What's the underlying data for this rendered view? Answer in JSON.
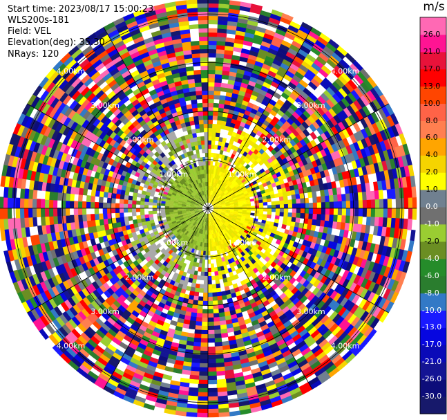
{
  "info": {
    "start_time": "Start time: 2023/08/17 15:00:23",
    "instrument": "WLS200s-181",
    "field": "Field: VEL",
    "elevation": "Elevation(deg): 35.30",
    "nrays": "NRays: 120"
  },
  "chart_data": {
    "type": "heatmap",
    "projection": "polar-ppi",
    "field": "VEL",
    "units": "m/s",
    "n_rays": 120,
    "range_rings_km": [
      1.0,
      2.0,
      3.0,
      4.0
    ],
    "ring_labels": {
      "1": "1.00km",
      "2": "2.00km",
      "3": "3.00km",
      "4": "4.00km"
    },
    "max_range_km": 4.0,
    "colorbar": {
      "ticks": [
        "-30.0",
        "-26.0",
        "-21.0",
        "-17.0",
        "-13.0",
        "-10.0",
        "-8.0",
        "-6.0",
        "-4.0",
        "-2.0",
        "-1.0",
        "0.0",
        "1.0",
        "2.0",
        "4.0",
        "6.0",
        "8.0",
        "10.0",
        "13.0",
        "17.0",
        "21.0",
        "26.0"
      ],
      "colors": [
        "#17196b",
        "#0d0d7a",
        "#141494",
        "#0a0ab8",
        "#0606e0",
        "#1a1aff",
        "#3279c6",
        "#2a7d2e",
        "#258c2a",
        "#6b8e23",
        "#9acd32",
        "#707070",
        "#708090",
        "#ffff00",
        "#f5d400",
        "#ffa500",
        "#ff7f50",
        "#ff6347",
        "#ff4500",
        "#ff0000",
        "#e8123a",
        "#ff1493",
        "#ff69b4"
      ]
    },
    "inner_region": {
      "positive_sector": "east",
      "negative_sector": "west"
    }
  }
}
